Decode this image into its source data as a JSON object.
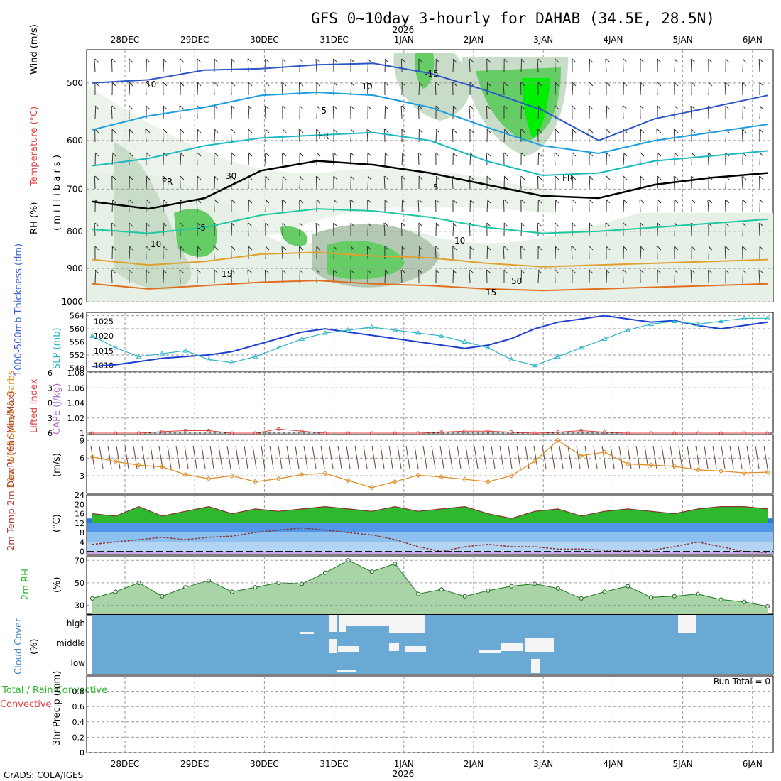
{
  "title": "GFS 0~10day 3-hourly for DAHAB (34.5E, 28.5N)",
  "credit": "GrADS: COLA/IGES",
  "run_total": "Run Total = 0",
  "time_axis": {
    "labels": [
      "28DEC",
      "29DEC",
      "30DEC",
      "31DEC",
      "1JAN",
      "2JAN",
      "3JAN",
      "4JAN",
      "5JAN",
      "6JAN"
    ],
    "year_label": "2026"
  },
  "colors": {
    "grid": "#9a9a9a",
    "rh_light": "#e6f0e6",
    "rh_mid": "#c8dcc8",
    "rh_dark": "#b4c8b4",
    "rh_green": "#66cc66",
    "rh_bright": "#00ee00",
    "thickness": "#1f3fd0",
    "slp": "#2cb5c8",
    "lifted": "#e04040",
    "wind10": "#e0902a",
    "barb": "#6b4030",
    "temp_fill": "#2db82d",
    "cloud_blue": "#6aa9d4",
    "cloud_white": "#f4f4f4",
    "freezing": "#000000"
  },
  "chart_data": [
    {
      "panel": "upper_air",
      "type": "heatmap",
      "ylabel_parts": [
        "RH (%)",
        "Temperature (°C)",
        "Wind (m/s)"
      ],
      "ylabel2": "( m i l l i b a r s )",
      "y_ticks": [
        500,
        600,
        700,
        800,
        900,
        1000
      ],
      "ylim": [
        1000,
        450
      ],
      "y_scale": "log-pressure",
      "isotherm_labels": [
        "-15",
        "-10",
        "-5",
        "FR",
        "5",
        "10",
        "15",
        "-5",
        "10",
        "15",
        "30",
        "50",
        "FR",
        "FR",
        "10"
      ],
      "isotherms": [
        {
          "name": "-15",
          "color": "#2c56c8",
          "values": [
            500,
            495,
            480,
            478,
            472,
            470,
            485,
            512,
            545,
            600,
            560,
            540,
            520
          ]
        },
        {
          "name": "-10",
          "color": "#1a9ee0",
          "values": [
            580,
            555,
            540,
            520,
            515,
            520,
            540,
            575,
            610,
            625,
            600,
            585,
            570
          ]
        },
        {
          "name": "-5",
          "color": "#1ab8c0",
          "values": [
            650,
            635,
            610,
            595,
            590,
            585,
            600,
            640,
            670,
            665,
            640,
            630,
            620
          ]
        },
        {
          "name": "FR",
          "color": "#000000",
          "values": [
            728,
            745,
            720,
            660,
            640,
            648,
            665,
            690,
            715,
            720,
            690,
            675,
            665
          ]
        },
        {
          "name": "5",
          "color": "#1ec8a0",
          "values": [
            795,
            805,
            790,
            760,
            745,
            750,
            765,
            790,
            805,
            800,
            790,
            780,
            770
          ]
        },
        {
          "name": "10",
          "color": "#e0a030",
          "values": [
            875,
            890,
            880,
            860,
            855,
            865,
            870,
            885,
            895,
            890,
            885,
            880,
            875
          ]
        },
        {
          "name": "15",
          "color": "#e07020",
          "values": [
            945,
            960,
            950,
            940,
            935,
            945,
            950,
            960,
            965,
            960,
            955,
            950,
            945
          ]
        }
      ]
    },
    {
      "panel": "thickness_slp",
      "type": "line",
      "ylabel_left": "1000-500mb Thickness (dm)",
      "ylabel_right": "SLP (mb)",
      "left_ticks": [
        548,
        552,
        556,
        560,
        564
      ],
      "right_ticks": [
        1010,
        1015,
        1020,
        1025
      ],
      "series": [
        {
          "name": "Thickness",
          "axis": "left",
          "values": [
            548.5,
            549,
            550,
            551,
            551.5,
            552,
            553,
            555,
            557,
            559,
            560,
            559,
            558,
            557,
            556,
            555,
            554,
            555,
            557,
            560,
            562,
            563,
            564,
            563,
            562,
            562.5,
            561,
            560,
            561,
            562
          ]
        },
        {
          "name": "SLP",
          "axis": "right",
          "values": [
            1020,
            1016,
            1013,
            1014,
            1015,
            1012,
            1011,
            1013,
            1016,
            1019,
            1021,
            1022,
            1023,
            1022,
            1021,
            1020,
            1018,
            1016,
            1012,
            1010,
            1013,
            1016,
            1019,
            1022,
            1024,
            1025,
            1024,
            1025,
            1026,
            1026
          ]
        }
      ]
    },
    {
      "panel": "cape_li",
      "type": "line",
      "ylabel_left": "Lifted Index",
      "ylabel_right": "CAPE (J/kg)",
      "left_ticks": [
        -6,
        -3,
        0,
        3,
        6
      ],
      "right_ticks": [
        1,
        1.02,
        1.04,
        1.06,
        1.08
      ],
      "series": [
        {
          "name": "Lifted Index",
          "values": [
            6,
            6,
            6,
            5.7,
            5.5,
            5.5,
            6,
            6,
            5.2,
            5.6,
            6,
            6,
            6,
            6,
            6,
            5.8,
            5.6,
            5.6,
            5.8,
            6,
            5.8,
            5.5,
            5.8,
            6,
            6,
            6,
            6,
            6,
            6,
            6
          ]
        }
      ]
    },
    {
      "panel": "wind10",
      "type": "line",
      "ylabel_left": "10m Wind Speed & Barbs",
      "ylabel_right": "(m/s)",
      "y_ticks": [
        3,
        6,
        9
      ],
      "ylim": [
        0,
        10
      ],
      "series": [
        {
          "name": "10m Wind Speed",
          "values": [
            6.2,
            5.4,
            4.8,
            4.5,
            3.2,
            2.5,
            3.0,
            2.0,
            2.5,
            3.2,
            3.4,
            2.2,
            1.0,
            2.0,
            3.1,
            2.8,
            2.4,
            2.0,
            3.0,
            5.5,
            9.0,
            6.4,
            7.0,
            5.0,
            4.8,
            4.6,
            4.0,
            3.8,
            3.5,
            3.6
          ]
        }
      ]
    },
    {
      "panel": "temp2m",
      "type": "area",
      "ylabel_left": "2m Temp 2m DewPt (6hr Min/Max)",
      "ylabel_right": "(°C)",
      "y_ticks": [
        0,
        4,
        8,
        12,
        16,
        20,
        24
      ],
      "ylim": [
        -1,
        24
      ],
      "series": [
        {
          "name": "2m Temp",
          "values": [
            16,
            15,
            19,
            15,
            17,
            19,
            16,
            18,
            17,
            18,
            19,
            18,
            17,
            19,
            17,
            18,
            19,
            16,
            14,
            17,
            18,
            15,
            17,
            18,
            17,
            16,
            18,
            19,
            19,
            18
          ]
        },
        {
          "name": "2m DewPt",
          "values": [
            3,
            4,
            5,
            6,
            5,
            6,
            6.5,
            8,
            9,
            10,
            9,
            8,
            7,
            5,
            2,
            0,
            2,
            3,
            2,
            2,
            1,
            1,
            0.5,
            0.5,
            0.5,
            2,
            4,
            2,
            0,
            -0.5
          ]
        }
      ]
    },
    {
      "panel": "rh2m",
      "type": "area",
      "ylabel_left": "2m RH",
      "ylabel_right": "(%)",
      "y_ticks": [
        30,
        50,
        70
      ],
      "ylim": [
        22,
        74
      ],
      "series": [
        {
          "name": "2m RH",
          "values": [
            36,
            42,
            50,
            38,
            46,
            52,
            42,
            46,
            50,
            49,
            59,
            70,
            60,
            67,
            40,
            44,
            38,
            43,
            47,
            49,
            45,
            36,
            42,
            47,
            37,
            38,
            40,
            35,
            33,
            29
          ]
        }
      ]
    },
    {
      "panel": "cloud",
      "type": "heatmap",
      "ylabel_left": "Cloud Cover",
      "ylabel_right": "(%)",
      "levels": [
        "high",
        "middle",
        "low"
      ]
    },
    {
      "panel": "precip",
      "type": "bar",
      "ylabel_left": "Total / Rain Convective",
      "ylabel_right": "3hr Precip (mm)",
      "y_ticks": [
        0,
        0.2,
        0.4,
        0.6,
        0.8
      ],
      "ylim": [
        0,
        1
      ],
      "values": []
    }
  ]
}
